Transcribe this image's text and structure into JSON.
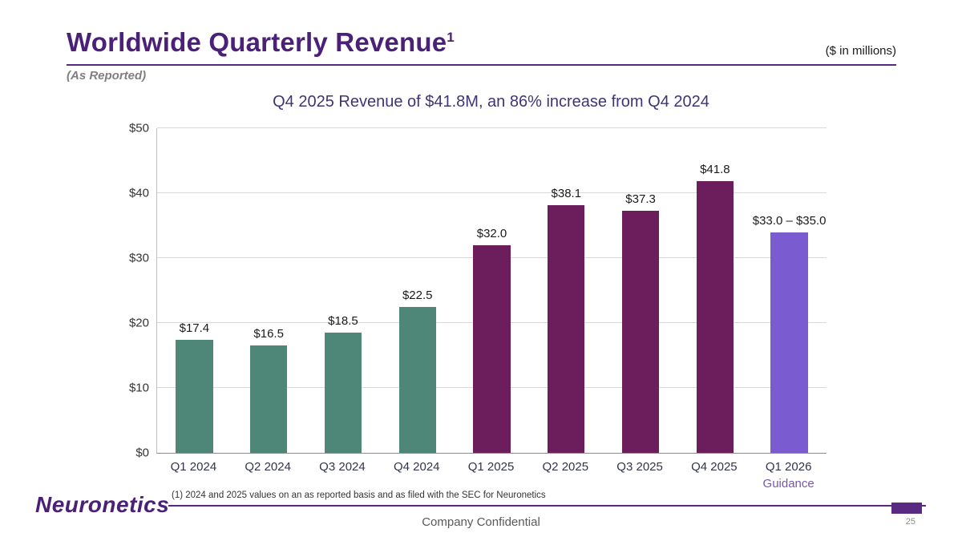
{
  "header": {
    "title": "Worldwide Quarterly Revenue",
    "title_superscript": "1",
    "units_note": "($ in millions)",
    "subtitle": "(As Reported)"
  },
  "chart_data": {
    "type": "bar",
    "title": "Q4 2025 Revenue of $41.8M, an 86% increase from Q4 2024",
    "categories": [
      "Q1 2024",
      "Q2 2024",
      "Q3 2024",
      "Q4 2024",
      "Q1 2025",
      "Q2 2025",
      "Q3 2025",
      "Q4 2025",
      "Q1 2026"
    ],
    "sublabels": [
      "",
      "",
      "",
      "",
      "",
      "",
      "",
      "",
      "Guidance"
    ],
    "values": [
      17.4,
      16.5,
      18.5,
      22.5,
      32.0,
      38.1,
      37.3,
      41.8,
      34.0
    ],
    "value_labels": [
      "$17.4",
      "$16.5",
      "$18.5",
      "$22.5",
      "$32.0",
      "$38.1",
      "$37.3",
      "$41.8",
      "$33.0 – $35.0"
    ],
    "colors": [
      "#4e8677",
      "#4e8677",
      "#4e8677",
      "#4e8677",
      "#6b1d5c",
      "#6b1d5c",
      "#6b1d5c",
      "#6b1d5c",
      "#7a5bd0"
    ],
    "ylim": [
      0,
      50
    ],
    "ytick_step": 10,
    "ytick_labels": [
      "$0",
      "$10",
      "$20",
      "$30",
      "$40",
      "$50"
    ],
    "grid": true,
    "legend": false,
    "xlabel": "",
    "ylabel": ""
  },
  "footer": {
    "footnote": "(1) 2024 and 2025 values on an as reported basis and as filed with the SEC for Neuronetics",
    "logo": "Neuronetics",
    "confidential": "Company Confidential",
    "page_number": "25"
  },
  "colors": {
    "title_purple": "#4b2178",
    "accent_purple": "#5a2a82",
    "teal_bar": "#4e8677",
    "dark_purple_bar": "#6b1d5c",
    "guidance_bar": "#7a5bd0"
  }
}
